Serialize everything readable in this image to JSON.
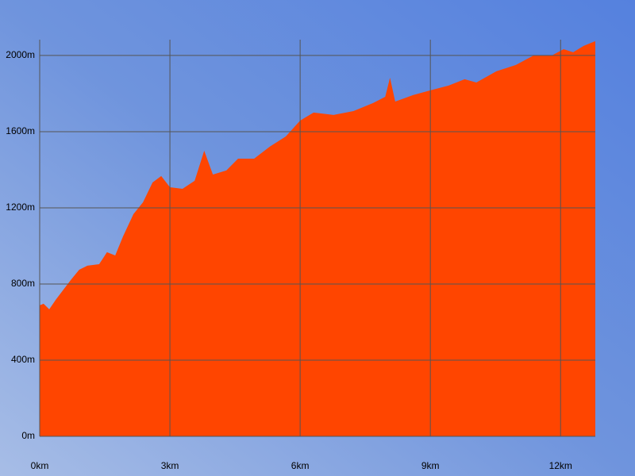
{
  "chart_data": {
    "type": "area",
    "color": "#ff4500",
    "grid": true,
    "x": [
      0,
      0.09,
      0.22,
      0.37,
      0.55,
      0.73,
      0.91,
      1.1,
      1.37,
      1.55,
      1.74,
      1.92,
      2.16,
      2.38,
      2.6,
      2.8,
      3.0,
      3.29,
      3.57,
      3.79,
      3.99,
      4.3,
      4.57,
      4.94,
      5.3,
      5.67,
      6.0,
      6.31,
      6.77,
      7.23,
      7.68,
      7.96,
      8.07,
      8.19,
      8.6,
      9.0,
      9.42,
      9.79,
      10.06,
      10.52,
      10.97,
      11.38,
      11.8,
      12.07,
      12.29,
      12.53,
      12.8
    ],
    "values": [
      688,
      696,
      667,
      717,
      771,
      825,
      875,
      896,
      904,
      967,
      950,
      1050,
      1167,
      1229,
      1333,
      1367,
      1308,
      1300,
      1342,
      1500,
      1375,
      1396,
      1458,
      1458,
      1521,
      1575,
      1658,
      1700,
      1688,
      1708,
      1750,
      1783,
      1883,
      1758,
      1792,
      1817,
      1842,
      1875,
      1858,
      1917,
      1950,
      2000,
      2000,
      2033,
      2017,
      2050,
      2075
    ],
    "xlim": [
      0,
      12.8
    ],
    "ylim": [
      0,
      2083
    ],
    "xticks": [
      {
        "value": 0,
        "label": "0km"
      },
      {
        "value": 3,
        "label": "3km"
      },
      {
        "value": 6,
        "label": "6km"
      },
      {
        "value": 9,
        "label": "9km"
      },
      {
        "value": 12,
        "label": "12km"
      }
    ],
    "yticks": [
      {
        "value": 0,
        "label": "0m"
      },
      {
        "value": 400,
        "label": "400m"
      },
      {
        "value": 800,
        "label": "800m"
      },
      {
        "value": 1200,
        "label": "1200m"
      },
      {
        "value": 1600,
        "label": "1600m"
      },
      {
        "value": 2000,
        "label": "2000m"
      }
    ]
  }
}
